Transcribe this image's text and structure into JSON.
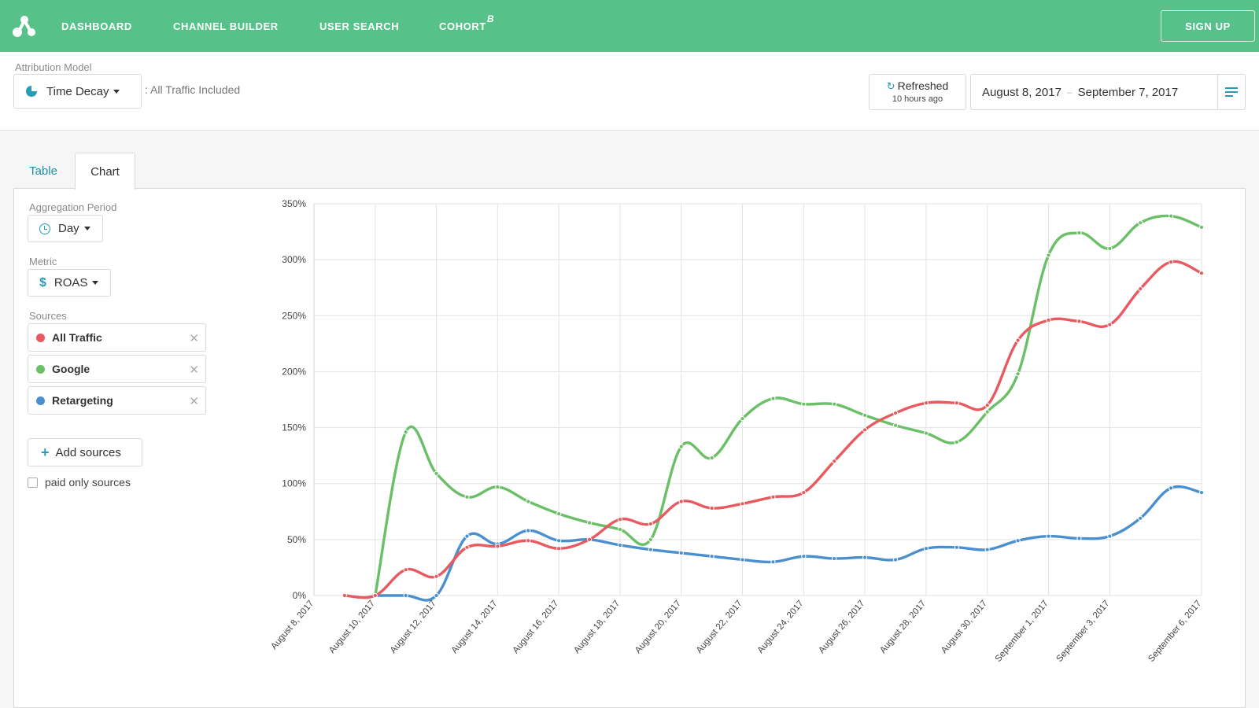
{
  "nav": {
    "items": [
      "DASHBOARD",
      "CHANNEL BUILDER",
      "USER SEARCH",
      "COHORT"
    ],
    "beta_mark": "β",
    "signup": "SIGN UP"
  },
  "header": {
    "attribution_label": "Attribution Model",
    "model": "Time Decay",
    "traffic_note": ": All Traffic Included",
    "refresh_title": "Refreshed",
    "refresh_ago": "10 hours ago",
    "date_start": "August 8, 2017",
    "date_end": "September 7, 2017"
  },
  "tabs": {
    "table": "Table",
    "chart": "Chart",
    "active": "Chart"
  },
  "controls": {
    "aggregation_label": "Aggregation Period",
    "aggregation_value": "Day",
    "metric_label": "Metric",
    "metric_value": "ROAS",
    "sources_label": "Sources",
    "sources": [
      {
        "name": "All Traffic",
        "color": "#e85a5f"
      },
      {
        "name": "Google",
        "color": "#6bbf67"
      },
      {
        "name": "Retargeting",
        "color": "#4a90cf"
      }
    ],
    "add_sources": "Add sources",
    "paid_only": "paid only sources"
  },
  "colors": {
    "brand": "#57c18a",
    "accent": "#2a9bb4"
  },
  "chart_data": {
    "type": "line",
    "x": [
      "August 8, 2017",
      "August 9, 2017",
      "August 10, 2017",
      "August 11, 2017",
      "August 12, 2017",
      "August 13, 2017",
      "August 14, 2017",
      "August 15, 2017",
      "August 16, 2017",
      "August 17, 2017",
      "August 18, 2017",
      "August 19, 2017",
      "August 20, 2017",
      "August 21, 2017",
      "August 22, 2017",
      "August 23, 2017",
      "August 24, 2017",
      "August 25, 2017",
      "August 26, 2017",
      "August 27, 2017",
      "August 28, 2017",
      "August 29, 2017",
      "August 30, 2017",
      "August 31, 2017",
      "September 1, 2017",
      "September 2, 2017",
      "September 3, 2017",
      "September 4, 2017",
      "September 5, 2017",
      "September 6, 2017"
    ],
    "x_tick_labels": [
      "August 8, 2017",
      "August 10, 2017",
      "August 12, 2017",
      "August 14, 2017",
      "August 16, 2017",
      "August 18, 2017",
      "August 20, 2017",
      "August 22, 2017",
      "August 24, 2017",
      "August 26, 2017",
      "August 28, 2017",
      "August 30, 2017",
      "September 1, 2017",
      "September 3, 2017",
      "September 6, 2017"
    ],
    "y_tick_labels": [
      "0%",
      "50%",
      "100%",
      "150%",
      "200%",
      "250%",
      "300%",
      "350%"
    ],
    "ylim": [
      0,
      350
    ],
    "y_unit": "%",
    "grid": true,
    "series": [
      {
        "name": "All Traffic",
        "color": "#e85a5f",
        "values": [
          null,
          0,
          0,
          23,
          17,
          43,
          44,
          49,
          42,
          50,
          68,
          64,
          84,
          78,
          82,
          88,
          92,
          120,
          148,
          163,
          172,
          172,
          170,
          228,
          246,
          245,
          242,
          274,
          298,
          288
        ]
      },
      {
        "name": "Google",
        "color": "#6bbf67",
        "values": [
          null,
          null,
          0,
          146,
          109,
          88,
          97,
          84,
          73,
          65,
          59,
          50,
          133,
          123,
          158,
          176,
          171,
          171,
          161,
          152,
          145,
          137,
          164,
          198,
          304,
          324,
          310,
          333,
          339,
          329
        ]
      },
      {
        "name": "Retargeting",
        "color": "#4a90cf",
        "values": [
          null,
          null,
          0,
          0,
          0,
          53,
          46,
          58,
          49,
          50,
          45,
          41,
          38,
          35,
          32,
          30,
          35,
          33,
          34,
          32,
          42,
          43,
          41,
          49,
          53,
          51,
          53,
          69,
          96,
          92
        ]
      }
    ]
  }
}
